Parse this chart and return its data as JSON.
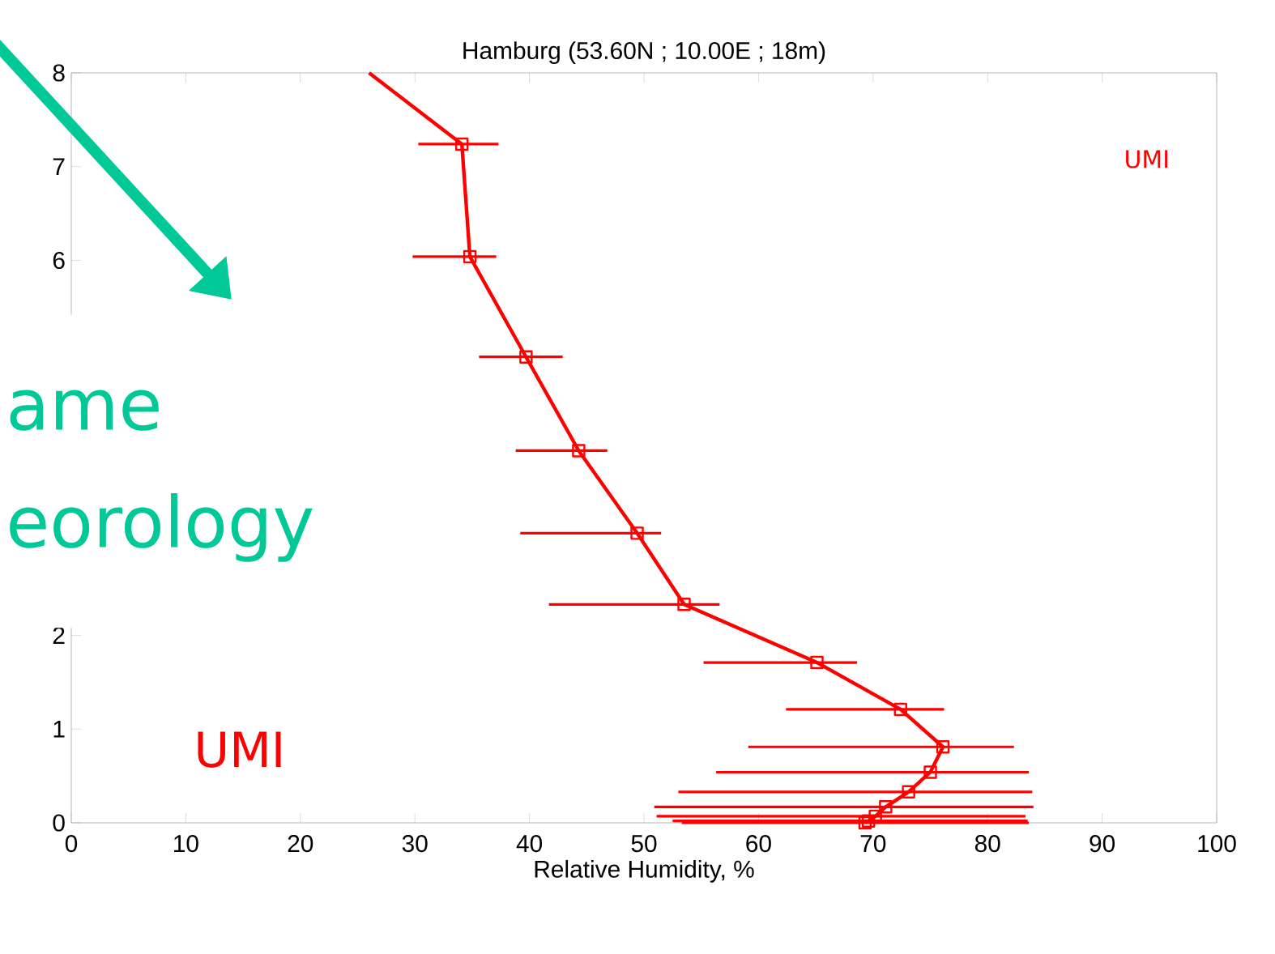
{
  "chart_data": {
    "type": "line",
    "title": "Hamburg (53.60N ; 10.00E ; 18m)",
    "xlabel": "Relative Humidity, %",
    "xlim": [
      0,
      100
    ],
    "xticks": [
      0,
      10,
      20,
      30,
      40,
      50,
      60,
      70,
      80,
      90,
      100
    ],
    "ylim": [
      0,
      8
    ],
    "yticks": [
      0,
      1,
      2,
      6,
      7,
      8
    ],
    "grid": false,
    "marker": "square",
    "line_style": "solid",
    "series": [
      {
        "color": "#ff0000",
        "x": [
          26,
          34.1,
          34.8,
          39.7,
          44.3,
          49.4,
          53.5,
          65.1,
          72.4,
          76.1,
          75.0,
          73.1,
          71.1,
          70.2,
          69.6,
          69.3
        ],
        "values": [
          8,
          7.24,
          6.04,
          4.97,
          3.97,
          3.09,
          2.33,
          1.71,
          1.21,
          0.81,
          0.54,
          0.33,
          0.17,
          0.07,
          0.02,
          0.0
        ],
        "xerrors": [
          null,
          [
            30.3,
            37.3
          ],
          [
            29.8,
            37.1
          ],
          [
            35.6,
            42.9
          ],
          [
            38.8,
            46.8
          ],
          [
            39.2,
            51.5
          ],
          [
            41.7,
            56.6
          ],
          [
            55.2,
            68.6
          ],
          [
            62.4,
            76.2
          ],
          [
            59.1,
            82.3
          ],
          [
            56.3,
            83.6
          ],
          [
            53.0,
            83.9
          ],
          [
            50.9,
            84.0
          ],
          [
            51.1,
            83.3
          ],
          [
            52.5,
            83.5
          ],
          [
            53.3,
            83.6
          ]
        ]
      }
    ],
    "annotations": [
      "UMI",
      "UMI",
      "ame",
      "eorology"
    ]
  }
}
